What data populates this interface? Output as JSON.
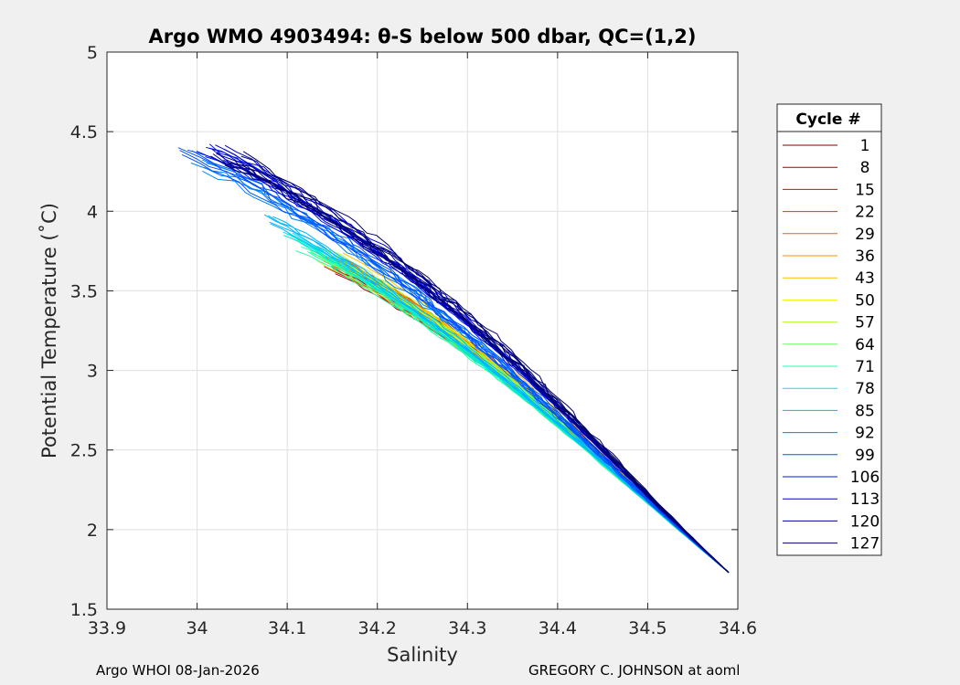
{
  "chart_data": {
    "type": "line",
    "title": "Argo WMO 4903494: θ-S below 500 dbar,  QC=(1,2)",
    "xlabel": "Salinity",
    "ylabel": "Potential Temperature (˚C)",
    "xlim": [
      33.9,
      34.6
    ],
    "ylim": [
      1.5,
      5
    ],
    "xticks": [
      "33.9",
      "34",
      "34.1",
      "34.2",
      "34.3",
      "34.4",
      "34.5",
      "34.6"
    ],
    "yticks": [
      "1.5",
      "2",
      "2.5",
      "3",
      "3.5",
      "4",
      "4.5",
      "5"
    ],
    "grid": true,
    "legend_position": "right",
    "legend": {
      "title": "Cycle #",
      "entries": [
        {
          "label": "1",
          "color": "#800000"
        },
        {
          "label": "8",
          "color": "#a00000"
        },
        {
          "label": "15",
          "color": "#c81400"
        },
        {
          "label": "22",
          "color": "#e63200"
        },
        {
          "label": "29",
          "color": "#ff5a00"
        },
        {
          "label": "36",
          "color": "#ff8c00"
        },
        {
          "label": "43",
          "color": "#ffbe00"
        },
        {
          "label": "50",
          "color": "#f5f000"
        },
        {
          "label": "57",
          "color": "#b4ff28"
        },
        {
          "label": "64",
          "color": "#6eff64"
        },
        {
          "label": "71",
          "color": "#28ffaa"
        },
        {
          "label": "78",
          "color": "#00e6dc"
        },
        {
          "label": "85",
          "color": "#00b4ff"
        },
        {
          "label": "92",
          "color": "#0082ff"
        },
        {
          "label": "99",
          "color": "#0050ff"
        },
        {
          "label": "106",
          "color": "#0014f0"
        },
        {
          "label": "113",
          "color": "#0000c8"
        },
        {
          "label": "120",
          "color": "#000096"
        },
        {
          "label": "127",
          "color": "#000064"
        }
      ]
    },
    "profile_envelope": {
      "common_end": [
        34.59,
        1.73
      ],
      "cycle_start_points": [
        {
          "cycle": 1,
          "s": 34.15,
          "t": 3.68
        },
        {
          "cycle": 8,
          "s": 34.16,
          "t": 3.64
        },
        {
          "cycle": 15,
          "s": 34.15,
          "t": 3.69
        },
        {
          "cycle": 22,
          "s": 34.16,
          "t": 3.66
        },
        {
          "cycle": 29,
          "s": 34.15,
          "t": 3.67
        },
        {
          "cycle": 36,
          "s": 34.16,
          "t": 3.68
        },
        {
          "cycle": 43,
          "s": 34.16,
          "t": 3.7
        },
        {
          "cycle": 50,
          "s": 34.15,
          "t": 3.71
        },
        {
          "cycle": 57,
          "s": 34.14,
          "t": 3.72
        },
        {
          "cycle": 64,
          "s": 34.13,
          "t": 3.75
        },
        {
          "cycle": 71,
          "s": 34.12,
          "t": 3.78
        },
        {
          "cycle": 78,
          "s": 34.1,
          "t": 3.85
        },
        {
          "cycle": 85,
          "s": 34.08,
          "t": 3.95
        },
        {
          "cycle": 92,
          "s": 34.0,
          "t": 4.3
        },
        {
          "cycle": 99,
          "s": 33.99,
          "t": 4.35
        },
        {
          "cycle": 106,
          "s": 34.01,
          "t": 4.38
        },
        {
          "cycle": 113,
          "s": 34.02,
          "t": 4.37
        },
        {
          "cycle": 120,
          "s": 34.03,
          "t": 4.35
        },
        {
          "cycle": 127,
          "s": 34.04,
          "t": 4.32
        }
      ]
    }
  },
  "footer": {
    "left": "Argo WHOI 08-Jan-2026",
    "right": "GREGORY C. JOHNSON at aoml"
  }
}
